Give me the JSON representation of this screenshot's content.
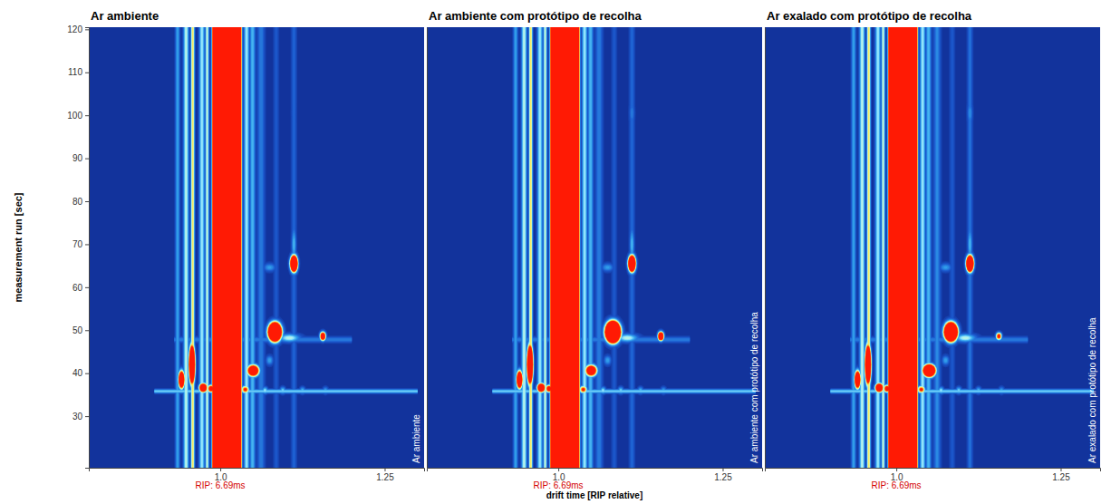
{
  "chart_data": [
    {
      "type": "heatmap",
      "title": "Ar ambiente",
      "ylabel": "measurement run [sec]",
      "xlim": [
        0.8,
        1.31
      ],
      "ylim": [
        18,
        120.5
      ],
      "zlim": [
        0,
        100
      ],
      "xticks": [
        {
          "value": 1,
          "label": "1.0"
        },
        1.25
      ],
      "yticks": [
        30,
        40,
        50,
        60,
        70,
        80,
        90,
        100,
        110,
        120
      ],
      "tick_labels": true,
      "annotations": [
        {
          "x": 1,
          "text": "RIP: 6.69ms"
        }
      ],
      "side_label": "Ar ambiente",
      "bands": [
        {
          "drift": 0.935,
          "width": 0.0025,
          "intensity": 40
        },
        {
          "drift": 0.948,
          "width": 0.003,
          "intensity": 60
        },
        {
          "drift": 0.958,
          "width": 0.002,
          "intensity": 75
        },
        {
          "drift": 0.972,
          "width": 0.003,
          "intensity": 55
        },
        {
          "drift": 0.98,
          "width": 0.002,
          "intensity": 62
        },
        {
          "drift": 1.01,
          "width": 0.0058,
          "intensity": 100000
        },
        {
          "drift": 1.04,
          "width": 0.003,
          "intensity": 55
        },
        {
          "drift": 1.049,
          "width": 0.003,
          "intensity": 45
        },
        {
          "drift": 1.062,
          "width": 0.004,
          "intensity": 30
        },
        {
          "drift": 1.085,
          "width": 0.003,
          "intensity": 18
        },
        {
          "drift": 1.112,
          "width": 0.003,
          "intensity": 22
        }
      ],
      "rows": [
        {
          "run": 35.8,
          "width": 0.35,
          "intensity": 50,
          "drift_from": 0.9,
          "drift_to": 1.3
        },
        {
          "run": 47.8,
          "width": 0.5,
          "intensity": 30,
          "drift_from": 0.93,
          "drift_to": 1.2
        }
      ],
      "spots": [
        {
          "drift": 0.941,
          "run": 38.5,
          "drift_width": 0.0028,
          "run_width": 1.3,
          "intensity": 250
        },
        {
          "drift": 0.957,
          "run": 42.0,
          "drift_width": 0.0028,
          "run_width": 2.8,
          "intensity": 300
        },
        {
          "drift": 0.974,
          "run": 36.6,
          "drift_width": 0.004,
          "run_width": 0.7,
          "intensity": 200
        },
        {
          "drift": 0.986,
          "run": 36.4,
          "drift_width": 0.0035,
          "run_width": 0.6,
          "intensity": 140
        },
        {
          "drift": 1.038,
          "run": 36.2,
          "drift_width": 0.004,
          "run_width": 0.6,
          "intensity": 110
        },
        {
          "drift": 1.05,
          "run": 40.6,
          "drift_width": 0.006,
          "run_width": 0.9,
          "intensity": 200
        },
        {
          "drift": 1.083,
          "run": 49.6,
          "drift_width": 0.006,
          "run_width": 1.3,
          "intensity": 400
        },
        {
          "drift": 1.105,
          "run": 48.2,
          "drift_width": 0.012,
          "run_width": 0.7,
          "intensity": 60
        },
        {
          "drift": 1.156,
          "run": 48.6,
          "drift_width": 0.003,
          "run_width": 0.7,
          "intensity": 160
        },
        {
          "drift": 1.112,
          "run": 65.5,
          "drift_width": 0.0035,
          "run_width": 1.2,
          "intensity": 300
        },
        {
          "drift": 1.112,
          "run": 70.0,
          "drift_width": 0.0025,
          "run_width": 3.0,
          "intensity": 45
        },
        {
          "drift": 1.075,
          "run": 64.6,
          "drift_width": 0.007,
          "run_width": 0.7,
          "intensity": 38
        },
        {
          "drift": 1.112,
          "run": 100.5,
          "drift_width": 0.003,
          "run_width": 2.0,
          "intensity": 20
        },
        {
          "drift": 1.068,
          "run": 36.0,
          "drift_width": 0.003,
          "run_width": 0.6,
          "intensity": 55
        },
        {
          "drift": 1.095,
          "run": 36.0,
          "drift_width": 0.003,
          "run_width": 0.6,
          "intensity": 50
        },
        {
          "drift": 1.125,
          "run": 36.0,
          "drift_width": 0.003,
          "run_width": 0.6,
          "intensity": 45
        },
        {
          "drift": 1.16,
          "run": 36.0,
          "drift_width": 0.003,
          "run_width": 0.6,
          "intensity": 40
        },
        {
          "drift": 1.075,
          "run": 43.0,
          "drift_width": 0.004,
          "run_width": 0.8,
          "intensity": 40
        }
      ]
    },
    {
      "type": "heatmap",
      "title": "Ar ambiente com protótipo de recolha",
      "xlabel": "drift time [RIP relative]",
      "xlim": [
        0.8,
        1.31
      ],
      "ylim": [
        18,
        120.5
      ],
      "zlim": [
        0,
        100
      ],
      "xticks": [
        {
          "value": 1,
          "label": "1.0"
        },
        1.25
      ],
      "yticks": [
        30,
        40,
        50,
        60,
        70,
        80,
        90,
        100,
        110,
        120
      ],
      "tick_labels": "x",
      "annotations": [
        {
          "x": 1,
          "text": "RIP: 6.69ms"
        }
      ],
      "side_label": "Ar ambiente com protótipo de recolha",
      "bands": [
        {
          "drift": 0.935,
          "width": 0.0025,
          "intensity": 40
        },
        {
          "drift": 0.948,
          "width": 0.003,
          "intensity": 60
        },
        {
          "drift": 0.958,
          "width": 0.002,
          "intensity": 75
        },
        {
          "drift": 0.972,
          "width": 0.003,
          "intensity": 55
        },
        {
          "drift": 0.98,
          "width": 0.002,
          "intensity": 62
        },
        {
          "drift": 1.01,
          "width": 0.0058,
          "intensity": 100000
        },
        {
          "drift": 1.04,
          "width": 0.003,
          "intensity": 55
        },
        {
          "drift": 1.049,
          "width": 0.003,
          "intensity": 45
        },
        {
          "drift": 1.062,
          "width": 0.004,
          "intensity": 30
        },
        {
          "drift": 1.085,
          "width": 0.003,
          "intensity": 18
        },
        {
          "drift": 1.112,
          "width": 0.003,
          "intensity": 24
        }
      ],
      "rows": [
        {
          "run": 35.8,
          "width": 0.35,
          "intensity": 50,
          "drift_from": 0.9,
          "drift_to": 1.3
        },
        {
          "run": 47.8,
          "width": 0.5,
          "intensity": 30,
          "drift_from": 0.93,
          "drift_to": 1.2
        }
      ],
      "spots": [
        {
          "drift": 0.941,
          "run": 38.5,
          "drift_width": 0.0028,
          "run_width": 1.3,
          "intensity": 250
        },
        {
          "drift": 0.957,
          "run": 42.0,
          "drift_width": 0.0028,
          "run_width": 2.8,
          "intensity": 300
        },
        {
          "drift": 0.974,
          "run": 36.6,
          "drift_width": 0.004,
          "run_width": 0.7,
          "intensity": 200
        },
        {
          "drift": 0.986,
          "run": 36.4,
          "drift_width": 0.0035,
          "run_width": 0.6,
          "intensity": 140
        },
        {
          "drift": 1.038,
          "run": 36.2,
          "drift_width": 0.004,
          "run_width": 0.6,
          "intensity": 110
        },
        {
          "drift": 1.05,
          "run": 40.6,
          "drift_width": 0.006,
          "run_width": 0.9,
          "intensity": 180
        },
        {
          "drift": 1.083,
          "run": 49.6,
          "drift_width": 0.0065,
          "run_width": 1.4,
          "intensity": 500
        },
        {
          "drift": 1.105,
          "run": 48.2,
          "drift_width": 0.012,
          "run_width": 0.7,
          "intensity": 60
        },
        {
          "drift": 1.156,
          "run": 48.6,
          "drift_width": 0.003,
          "run_width": 0.7,
          "intensity": 190
        },
        {
          "drift": 1.112,
          "run": 65.5,
          "drift_width": 0.0035,
          "run_width": 1.2,
          "intensity": 300
        },
        {
          "drift": 1.112,
          "run": 70.0,
          "drift_width": 0.0025,
          "run_width": 3.0,
          "intensity": 45
        },
        {
          "drift": 1.075,
          "run": 64.6,
          "drift_width": 0.007,
          "run_width": 0.7,
          "intensity": 38
        },
        {
          "drift": 1.112,
          "run": 100.5,
          "drift_width": 0.003,
          "run_width": 2.0,
          "intensity": 30
        },
        {
          "drift": 1.068,
          "run": 36.0,
          "drift_width": 0.003,
          "run_width": 0.6,
          "intensity": 55
        },
        {
          "drift": 1.095,
          "run": 36.0,
          "drift_width": 0.003,
          "run_width": 0.6,
          "intensity": 50
        },
        {
          "drift": 1.125,
          "run": 36.0,
          "drift_width": 0.003,
          "run_width": 0.6,
          "intensity": 45
        },
        {
          "drift": 1.16,
          "run": 36.0,
          "drift_width": 0.003,
          "run_width": 0.6,
          "intensity": 40
        },
        {
          "drift": 1.075,
          "run": 43.0,
          "drift_width": 0.004,
          "run_width": 0.8,
          "intensity": 40
        }
      ]
    },
    {
      "type": "heatmap",
      "title": "Ar exalado com protótipo de recolha",
      "xlim": [
        0.8,
        1.31
      ],
      "ylim": [
        18,
        120.5
      ],
      "zlim": [
        0,
        100
      ],
      "xticks": [
        {
          "value": 1,
          "label": "1.0"
        },
        1.25
      ],
      "yticks": [
        30,
        40,
        50,
        60,
        70,
        80,
        90,
        100,
        110,
        120
      ],
      "tick_labels": "x",
      "annotations": [
        {
          "x": 1,
          "text": "RIP: 6.69ms"
        }
      ],
      "side_label": "Ar exalado com protótipo de recolha",
      "bands": [
        {
          "drift": 0.935,
          "width": 0.0025,
          "intensity": 40
        },
        {
          "drift": 0.948,
          "width": 0.003,
          "intensity": 60
        },
        {
          "drift": 0.958,
          "width": 0.002,
          "intensity": 75
        },
        {
          "drift": 0.972,
          "width": 0.003,
          "intensity": 55
        },
        {
          "drift": 0.98,
          "width": 0.002,
          "intensity": 62
        },
        {
          "drift": 1.01,
          "width": 0.0058,
          "intensity": 100000
        },
        {
          "drift": 1.04,
          "width": 0.003,
          "intensity": 55
        },
        {
          "drift": 1.049,
          "width": 0.003,
          "intensity": 45
        },
        {
          "drift": 1.062,
          "width": 0.004,
          "intensity": 32
        },
        {
          "drift": 1.085,
          "width": 0.003,
          "intensity": 18
        },
        {
          "drift": 1.112,
          "width": 0.003,
          "intensity": 26
        }
      ],
      "rows": [
        {
          "run": 35.8,
          "width": 0.35,
          "intensity": 50,
          "drift_from": 0.9,
          "drift_to": 1.3
        },
        {
          "run": 47.8,
          "width": 0.5,
          "intensity": 30,
          "drift_from": 0.93,
          "drift_to": 1.2
        }
      ],
      "spots": [
        {
          "drift": 0.941,
          "run": 38.5,
          "drift_width": 0.0028,
          "run_width": 1.3,
          "intensity": 250
        },
        {
          "drift": 0.957,
          "run": 42.0,
          "drift_width": 0.0028,
          "run_width": 2.8,
          "intensity": 300
        },
        {
          "drift": 0.974,
          "run": 36.6,
          "drift_width": 0.004,
          "run_width": 0.7,
          "intensity": 200
        },
        {
          "drift": 0.986,
          "run": 36.4,
          "drift_width": 0.0035,
          "run_width": 0.6,
          "intensity": 140
        },
        {
          "drift": 1.038,
          "run": 36.2,
          "drift_width": 0.004,
          "run_width": 0.6,
          "intensity": 110
        },
        {
          "drift": 1.05,
          "run": 40.6,
          "drift_width": 0.006,
          "run_width": 0.9,
          "intensity": 300
        },
        {
          "drift": 1.083,
          "run": 49.6,
          "drift_width": 0.006,
          "run_width": 1.3,
          "intensity": 400
        },
        {
          "drift": 1.105,
          "run": 48.2,
          "drift_width": 0.012,
          "run_width": 0.7,
          "intensity": 60
        },
        {
          "drift": 1.156,
          "run": 48.6,
          "drift_width": 0.003,
          "run_width": 0.6,
          "intensity": 120
        },
        {
          "drift": 1.112,
          "run": 65.5,
          "drift_width": 0.0035,
          "run_width": 1.2,
          "intensity": 300
        },
        {
          "drift": 1.112,
          "run": 70.0,
          "drift_width": 0.0025,
          "run_width": 3.0,
          "intensity": 45
        },
        {
          "drift": 1.075,
          "run": 64.6,
          "drift_width": 0.007,
          "run_width": 0.7,
          "intensity": 38
        },
        {
          "drift": 1.112,
          "run": 100.5,
          "drift_width": 0.003,
          "run_width": 2.0,
          "intensity": 35
        },
        {
          "drift": 1.068,
          "run": 36.0,
          "drift_width": 0.003,
          "run_width": 0.6,
          "intensity": 55
        },
        {
          "drift": 1.095,
          "run": 36.0,
          "drift_width": 0.003,
          "run_width": 0.6,
          "intensity": 50
        },
        {
          "drift": 1.125,
          "run": 36.0,
          "drift_width": 0.003,
          "run_width": 0.6,
          "intensity": 45
        },
        {
          "drift": 1.16,
          "run": 36.0,
          "drift_width": 0.003,
          "run_width": 0.6,
          "intensity": 40
        },
        {
          "drift": 1.075,
          "run": 43.0,
          "drift_width": 0.004,
          "run_width": 0.8,
          "intensity": 40
        }
      ]
    }
  ]
}
